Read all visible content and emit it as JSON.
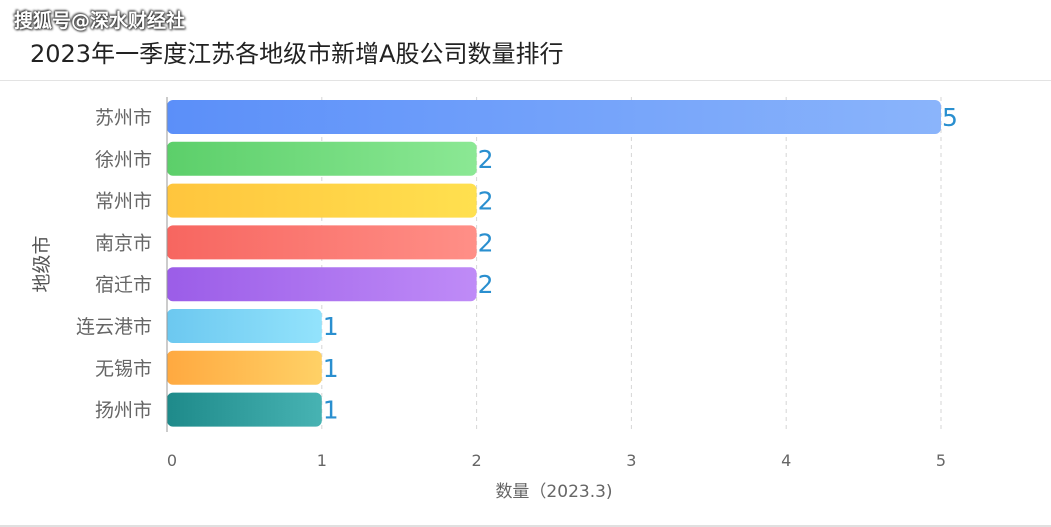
{
  "watermark": "搜狐号@深水财经社",
  "chart_data": {
    "type": "bar",
    "orientation": "horizontal",
    "title": "2023年一季度江苏各地级市新增A股公司数量排行",
    "xlabel": "数量（2023.3)",
    "ylabel": "地级市",
    "xlim": [
      0,
      5
    ],
    "xticks": [
      0,
      1,
      2,
      3,
      4,
      5
    ],
    "grid": true,
    "categories": [
      "苏州市",
      "徐州市",
      "常州市",
      "南京市",
      "宿迁市",
      "连云港市",
      "无锡市",
      "扬州市"
    ],
    "values": [
      5,
      2,
      2,
      2,
      2,
      1,
      1,
      1
    ],
    "colors": [
      [
        "#5b8ff9",
        "#8ab4fb"
      ],
      [
        "#5ccf6a",
        "#8be894"
      ],
      [
        "#ffc53d",
        "#ffe04f"
      ],
      [
        "#f76660",
        "#ff8f87"
      ],
      [
        "#9b5de8",
        "#bf8bf7"
      ],
      [
        "#6cc8f0",
        "#93e3fc"
      ],
      [
        "#ffa940",
        "#ffd166"
      ],
      [
        "#1e8a8a",
        "#47b3b3"
      ]
    ],
    "label_color": "#2a8fcf"
  }
}
